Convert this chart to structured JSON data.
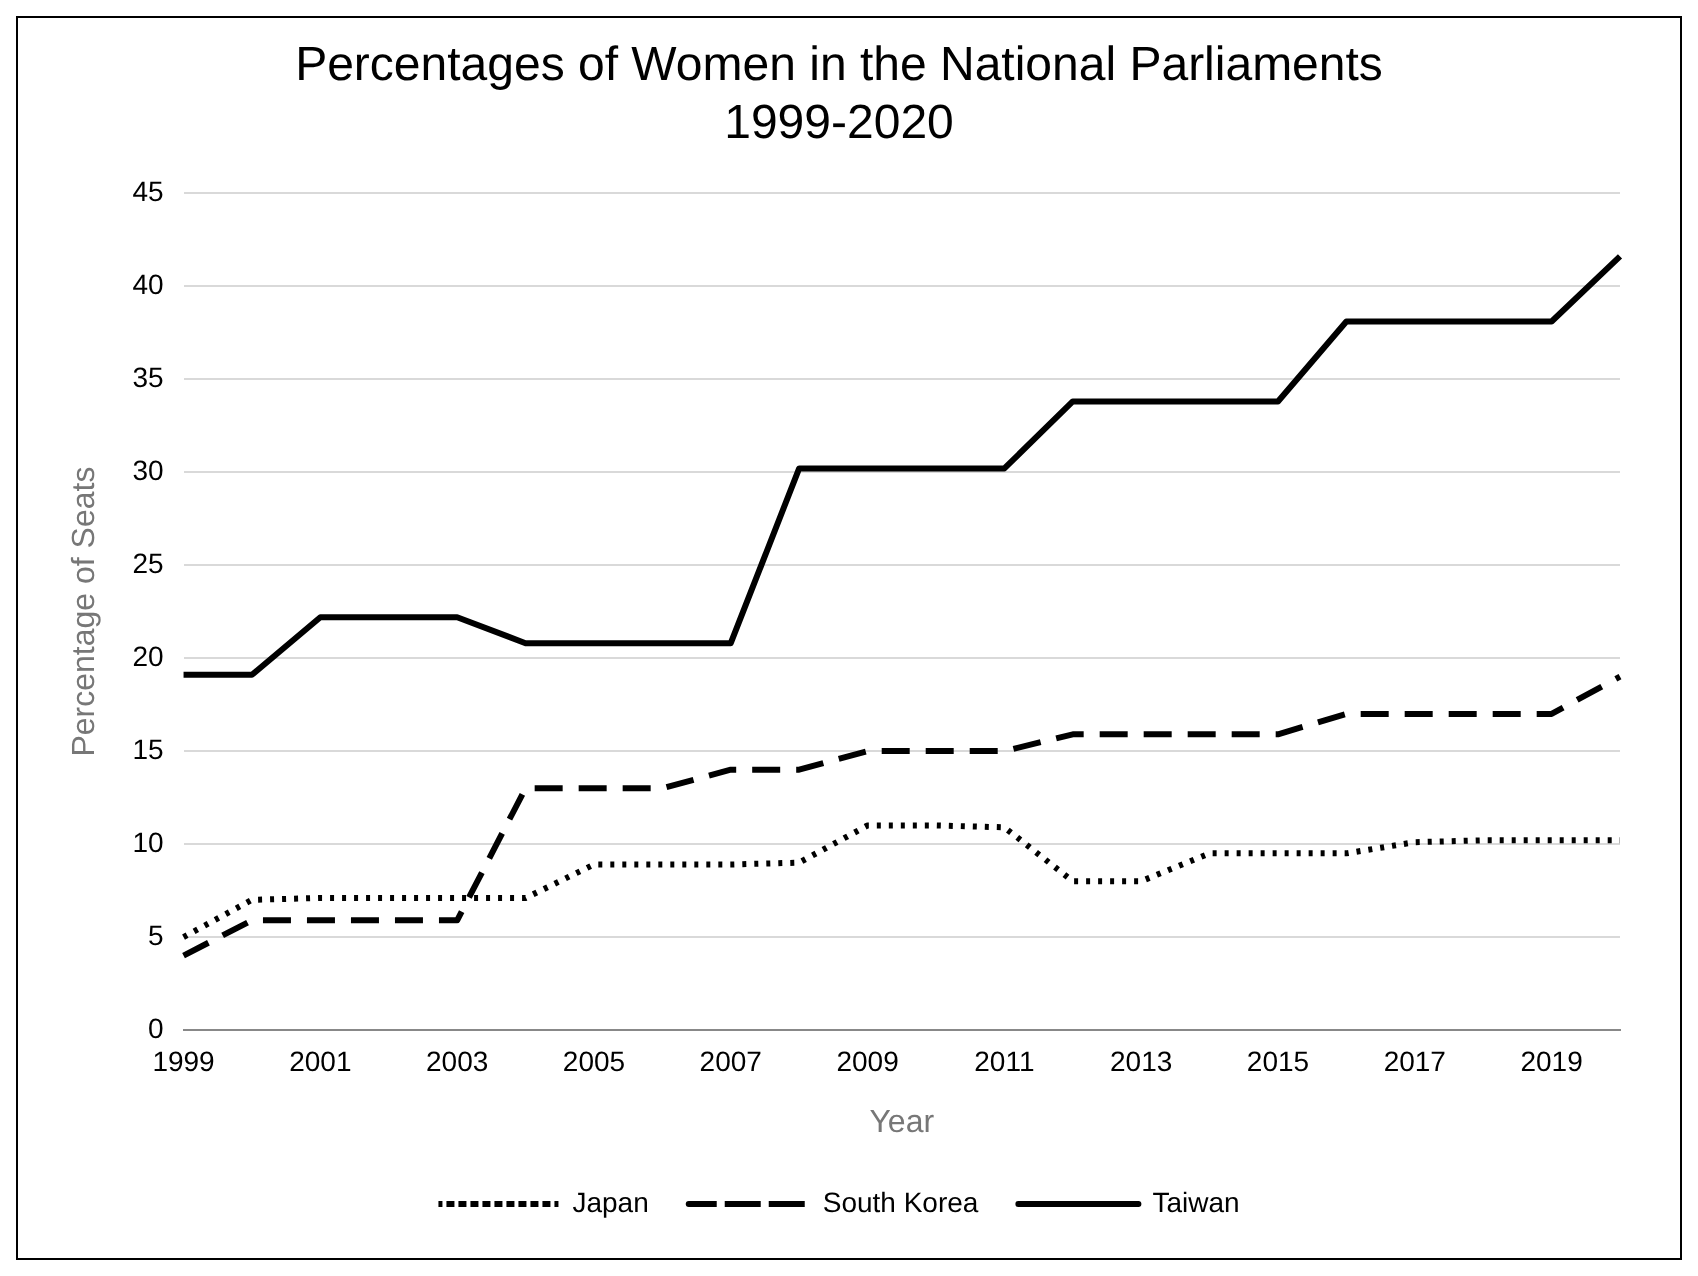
{
  "chart_data": {
    "type": "line",
    "title": "Percentages of Women in the National Parliaments\n1999-2020",
    "xlabel": "Year",
    "ylabel": "Percentage of Seats",
    "categories": [
      "1999",
      null,
      "2001",
      null,
      "2003",
      null,
      "2005",
      null,
      "2007",
      null,
      "2009",
      null,
      "2011",
      null,
      "2013",
      null,
      "2015",
      null,
      "2017",
      null,
      "2019",
      null
    ],
    "series": [
      {
        "name": "Japan",
        "color": "#000000",
        "line_style": "dotted",
        "values": [
          5,
          7,
          7.1,
          7.1,
          7.1,
          7.1,
          8.9,
          8.9,
          8.9,
          9,
          11,
          11,
          10.9,
          8,
          8,
          9.5,
          9.5,
          9.5,
          10.1,
          10.2,
          10.2,
          10.2
        ]
      },
      {
        "name": "South Korea",
        "color": "#000000",
        "line_style": "dashed",
        "values": [
          4,
          5.9,
          5.9,
          5.9,
          5.9,
          13,
          13,
          13,
          14,
          14,
          15,
          15,
          15,
          15.9,
          15.9,
          15.9,
          15.9,
          17,
          17,
          17,
          17,
          19
        ]
      },
      {
        "name": "Taiwan",
        "color": "#000000",
        "line_style": "solid",
        "values": [
          19.1,
          19.1,
          22.2,
          22.2,
          22.2,
          20.8,
          20.8,
          20.8,
          20.8,
          30.2,
          30.2,
          30.2,
          30.2,
          33.8,
          33.8,
          33.8,
          33.8,
          38.1,
          38.1,
          38.1,
          38.1,
          41.6
        ]
      }
    ],
    "ylim": [
      0,
      45
    ],
    "yticks": [
      0,
      5,
      10,
      15,
      20,
      25,
      30,
      35,
      40,
      45
    ],
    "grid": "y",
    "legend": "bottom",
    "marker": "none"
  }
}
